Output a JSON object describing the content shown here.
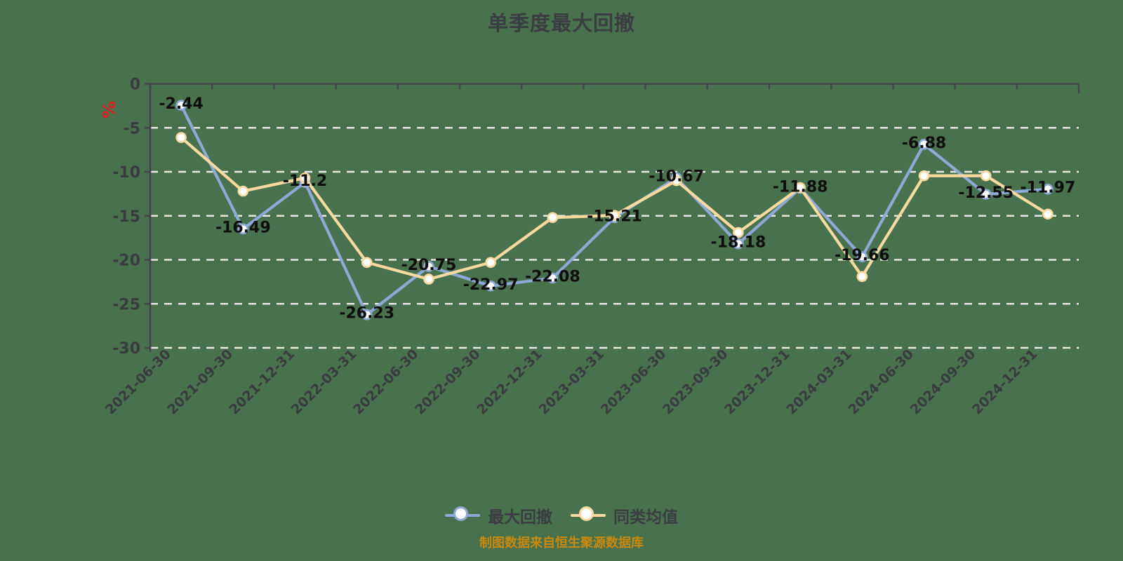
{
  "page": {
    "background_color": "#48714e"
  },
  "header": {
    "title": "单季度最大回撤"
  },
  "footer": {
    "source_note": "制图数据来自恒生聚源数据库",
    "source_color": "#c9880f"
  },
  "legend": {
    "items": [
      {
        "label": "最大回撤",
        "color": "#8ea9d6"
      },
      {
        "label": "同类均值",
        "color": "#f8d9a0"
      }
    ]
  },
  "colors": {
    "background": "#48714e",
    "axis": "#43464c",
    "grid": "#f3f3f3",
    "tick_text": "#383b40",
    "data_label": "#0e0e0e",
    "unit_percent": "#dd1f1f",
    "marker_fill": "#ffffff"
  },
  "chart_data": {
    "type": "line",
    "title": "单季度最大回撤",
    "x": [
      "2021-06-30",
      "2021-09-30",
      "2021-12-31",
      "2022-03-31",
      "2022-06-30",
      "2022-09-30",
      "2022-12-31",
      "2023-03-31",
      "2023-06-30",
      "2023-09-30",
      "2023-12-31",
      "2024-03-31",
      "2024-06-30",
      "2024-09-30",
      "2024-12-31"
    ],
    "series": [
      {
        "name": "最大回撤",
        "color": "#8ea9d6",
        "values": [
          -2.44,
          -16.49,
          -11.2,
          -26.23,
          -20.75,
          -22.97,
          -22.08,
          -15.21,
          -10.67,
          -18.18,
          -11.88,
          -19.66,
          -6.88,
          -12.55,
          -11.97
        ],
        "labels": [
          "-2.44",
          "-16.49",
          "-11.2",
          "-26.23",
          "-20.75",
          "-22.97",
          "-22.08",
          "-15.21",
          "-10.67",
          "-18.18",
          "-11.88",
          "-19.66",
          "-6.88",
          "-12.55",
          "-11.97"
        ],
        "show_labels": true
      },
      {
        "name": "同类均值",
        "color": "#f8d9a0",
        "values": [
          -6.1,
          -12.2,
          -10.7,
          -20.3,
          -22.2,
          -20.3,
          -15.2,
          -14.95,
          -11.0,
          -16.9,
          -11.8,
          -21.9,
          -10.45,
          -10.45,
          -14.8
        ],
        "show_labels": false,
        "values_estimated_from_plot": true
      }
    ],
    "ylabel": "%",
    "xlabel": "",
    "ylim": [
      -30,
      0
    ],
    "yticks": [
      0,
      -5,
      -10,
      -15,
      -20,
      -25,
      -30
    ],
    "ytick_labels": [
      "0",
      "-5",
      "-10",
      "-15",
      "-20",
      "-25",
      "-30"
    ],
    "grid": "horizontal-dashed",
    "legend_position": "bottom",
    "x_label_rotation_deg": -45
  }
}
